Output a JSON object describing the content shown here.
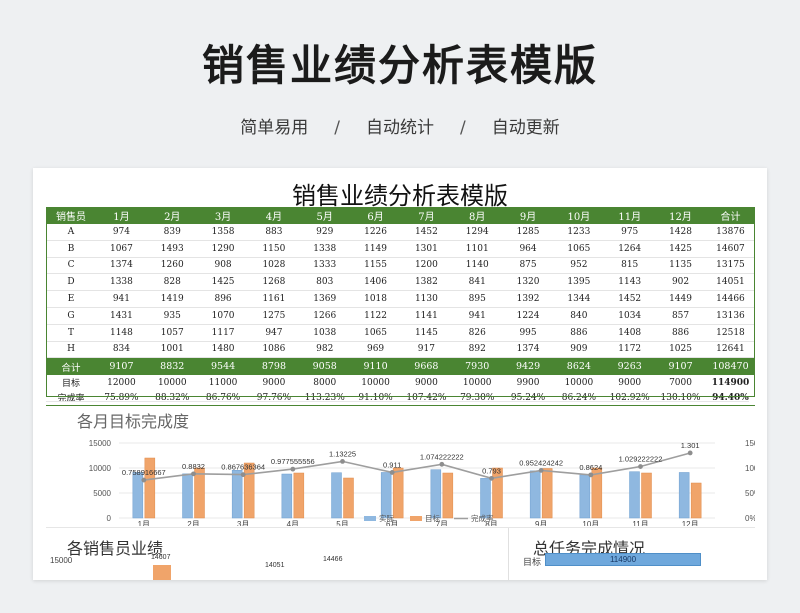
{
  "hero": {
    "title": "销售业绩分析表模版",
    "tagline": [
      "简单易用",
      "/",
      "自动统计",
      "/",
      "自动更新"
    ]
  },
  "sheet": {
    "title": "销售业绩分析表模版",
    "headers": [
      "销售员",
      "1月",
      "2月",
      "3月",
      "4月",
      "5月",
      "6月",
      "7月",
      "8月",
      "9月",
      "10月",
      "11月",
      "12月",
      "合计"
    ],
    "rows": [
      {
        "name": "A",
        "values": [
          "974",
          "839",
          "1358",
          "883",
          "929",
          "1226",
          "1452",
          "1294",
          "1285",
          "1233",
          "975",
          "1428",
          "13876"
        ]
      },
      {
        "name": "B",
        "values": [
          "1067",
          "1493",
          "1290",
          "1150",
          "1338",
          "1149",
          "1301",
          "1101",
          "964",
          "1065",
          "1264",
          "1425",
          "14607"
        ]
      },
      {
        "name": "C",
        "values": [
          "1374",
          "1260",
          "908",
          "1028",
          "1333",
          "1155",
          "1200",
          "1140",
          "875",
          "952",
          "815",
          "1135",
          "13175"
        ]
      },
      {
        "name": "D",
        "values": [
          "1338",
          "828",
          "1425",
          "1268",
          "803",
          "1406",
          "1382",
          "841",
          "1320",
          "1395",
          "1143",
          "902",
          "14051"
        ]
      },
      {
        "name": "E",
        "values": [
          "941",
          "1419",
          "896",
          "1161",
          "1369",
          "1018",
          "1130",
          "895",
          "1392",
          "1344",
          "1452",
          "1449",
          "14466"
        ]
      },
      {
        "name": "G",
        "values": [
          "1431",
          "935",
          "1070",
          "1275",
          "1266",
          "1122",
          "1141",
          "941",
          "1224",
          "840",
          "1034",
          "857",
          "13136"
        ]
      },
      {
        "name": "T",
        "values": [
          "1148",
          "1057",
          "1117",
          "947",
          "1038",
          "1065",
          "1145",
          "826",
          "995",
          "886",
          "1408",
          "886",
          "12518"
        ]
      },
      {
        "name": "H",
        "values": [
          "834",
          "1001",
          "1480",
          "1086",
          "982",
          "969",
          "917",
          "892",
          "1374",
          "909",
          "1172",
          "1025",
          "12641"
        ]
      }
    ],
    "total": {
      "label": "合计",
      "values": [
        "9107",
        "8832",
        "9544",
        "8798",
        "9058",
        "9110",
        "9668",
        "7930",
        "9429",
        "8624",
        "9263",
        "9107",
        "108470"
      ]
    },
    "target": {
      "label": "目标",
      "values": [
        "12000",
        "10000",
        "11000",
        "9000",
        "8000",
        "10000",
        "9000",
        "10000",
        "9900",
        "10000",
        "9000",
        "7000",
        "114900"
      ]
    },
    "rate": {
      "label": "完成率",
      "values": [
        "75.89%",
        "88.32%",
        "86.76%",
        "97.76%",
        "113.23%",
        "91.10%",
        "107.42%",
        "79.30%",
        "95.24%",
        "86.24%",
        "102.92%",
        "130.10%",
        "94.40%"
      ]
    }
  },
  "chart_data": {
    "type": "bar",
    "title": "各月目标完成度",
    "categories": [
      "1月",
      "2月",
      "3月",
      "4月",
      "5月",
      "6月",
      "7月",
      "8月",
      "9月",
      "10月",
      "11月",
      "12月"
    ],
    "series": [
      {
        "name": "实际",
        "type": "bar",
        "axis": "left",
        "color": "#8fb8e0",
        "values": [
          9107,
          8832,
          9544,
          8798,
          9058,
          9110,
          9668,
          7930,
          9429,
          8624,
          9263,
          9107
        ]
      },
      {
        "name": "目标",
        "type": "bar",
        "axis": "left",
        "color": "#f0a46a",
        "values": [
          12000,
          10000,
          11000,
          9000,
          8000,
          10000,
          9000,
          10000,
          9900,
          10000,
          9000,
          7000
        ]
      },
      {
        "name": "完成率",
        "type": "line",
        "axis": "right",
        "color": "#9e9e9e",
        "values": [
          0.758916667,
          0.8832,
          0.867636364,
          0.977555556,
          1.13225,
          0.911,
          1.074222222,
          0.793,
          0.952424242,
          0.8624,
          1.029222222,
          1.301
        ]
      }
    ],
    "point_labels": [
      "0.758916667",
      "0.8832",
      "0.867636364",
      "0.977555556",
      "1.13225",
      "0.911",
      "1.074222222",
      "0.793",
      "0.952424242",
      "0.8624",
      "1.029222222",
      "1.301"
    ],
    "y_left": {
      "min": 0,
      "max": 15000,
      "ticks": [
        "0",
        "5000",
        "10000",
        "15000"
      ]
    },
    "y_right": {
      "min": 0,
      "max": 1.5,
      "ticks": [
        "0%",
        "50%",
        "100%",
        "150%"
      ]
    },
    "legend": {
      "position": "bottom",
      "labels": [
        "实际",
        "目标",
        "完成率"
      ]
    }
  },
  "sub_charts": {
    "salesperson": {
      "title": "各销售员业绩",
      "y_top": "15000",
      "values": [
        "14607",
        "14051",
        "14466"
      ]
    },
    "total": {
      "title": "总任务完成情况",
      "label": "目标",
      "value": "114900"
    }
  }
}
